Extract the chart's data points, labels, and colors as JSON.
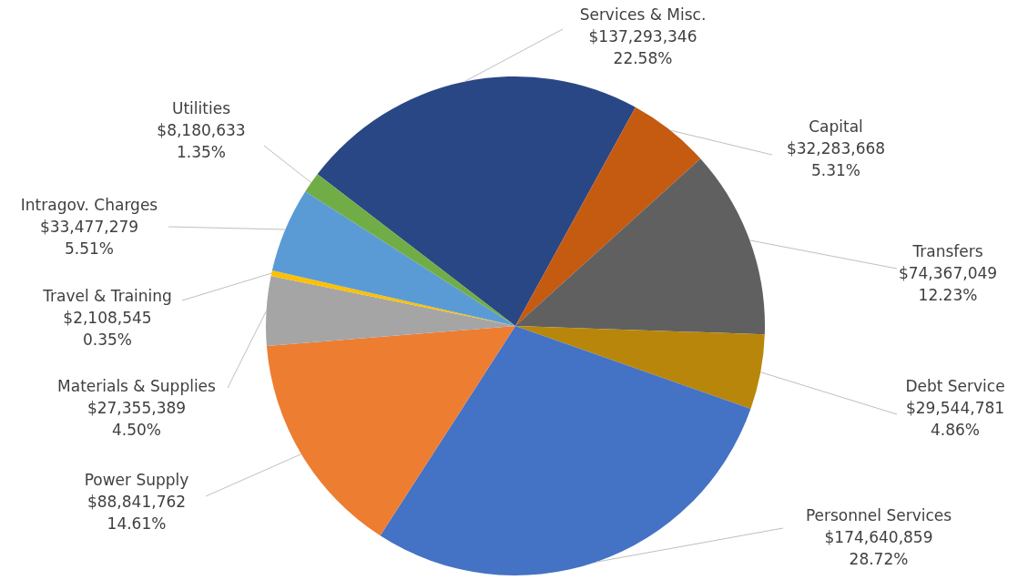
{
  "chart_data": {
    "type": "pie",
    "categories": [
      "Services & Misc.",
      "Capital",
      "Transfers",
      "Debt Service",
      "Personnel Services",
      "Power Supply",
      "Materials & Supplies",
      "Travel & Training",
      "Intragov. Charges",
      "Utilities"
    ],
    "values": [
      137293346,
      32283668,
      74367049,
      29544781,
      174640859,
      88841762,
      27355389,
      2108545,
      33477279,
      8180633
    ],
    "value_labels": [
      "$137,293,346\n22.58%",
      "$32,283,668\n5.31%",
      "$74,367,049\n12.23%",
      "$29,544,781\n4.86%",
      "$174,640,859\n28.72%",
      "$88,841,762\n14.61%",
      "$27,355,389\n4.50%",
      "$2,108,545\n0.35%",
      "$33,477,279\n5.51%",
      "$8,180,633\n1.35%"
    ],
    "colors": [
      "#2a4785",
      "#c55a11",
      "#606060",
      "#b8860b",
      "#4472c4",
      "#ed7d31",
      "#a5a5a5",
      "#ffc000",
      "#5b9bd5",
      "#70ad47"
    ]
  }
}
